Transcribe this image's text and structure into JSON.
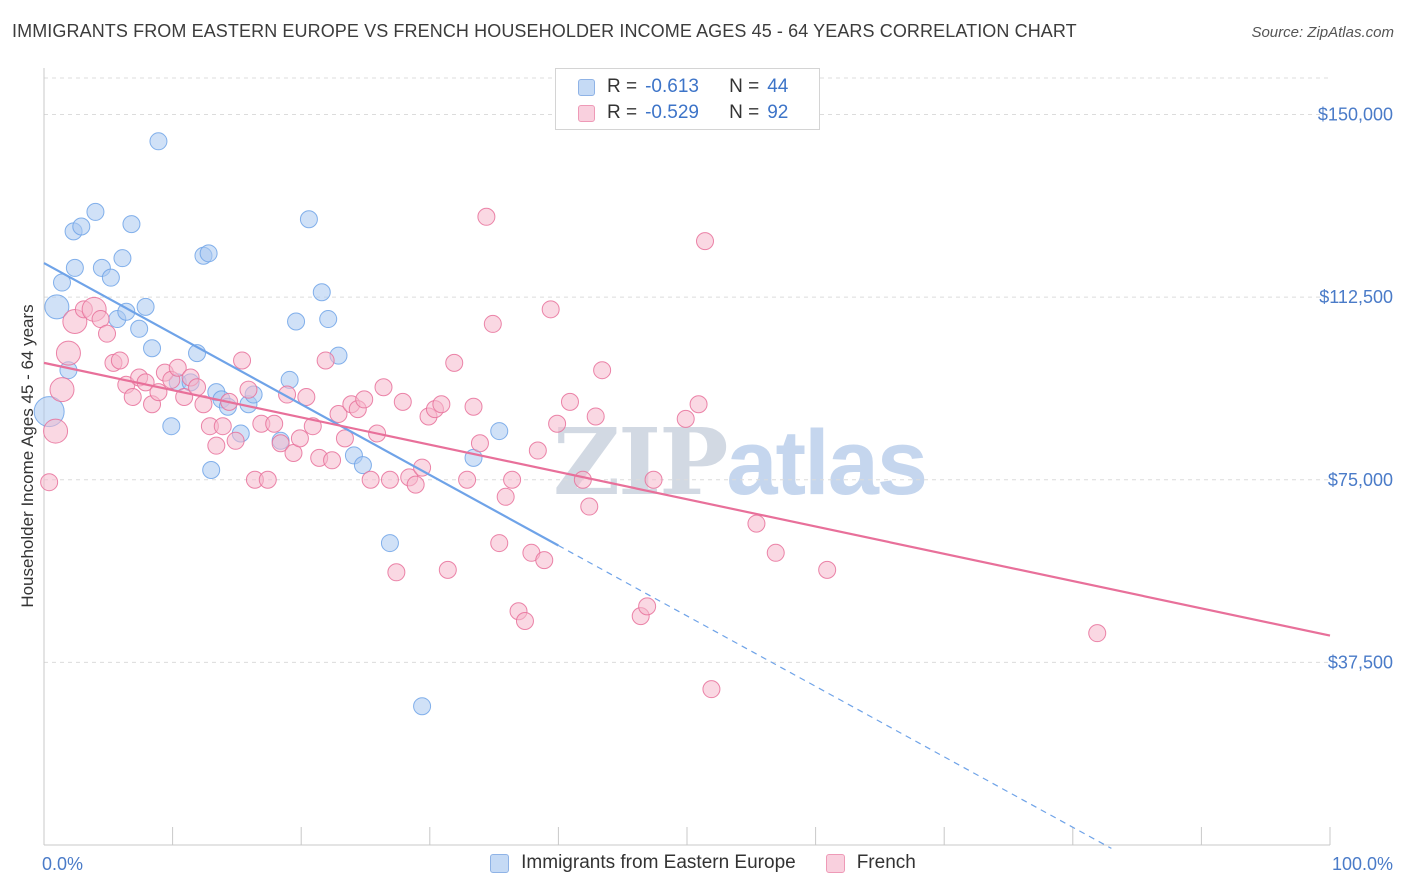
{
  "title": "IMMIGRANTS FROM EASTERN EUROPE VS FRENCH HOUSEHOLDER INCOME AGES 45 - 64 YEARS CORRELATION CHART",
  "source": "Source: ZipAtlas.com",
  "watermark": {
    "zip": "ZIP",
    "atlas": "atlas"
  },
  "legend": {
    "rows": [
      {
        "r_label": "R =",
        "r_value": "-0.613",
        "n_label": "N =",
        "n_value": "44",
        "color": "#a9c8f0"
      },
      {
        "r_label": "R =",
        "r_value": "-0.529",
        "n_label": "N =",
        "n_value": "92",
        "color": "#f5b8cc"
      }
    ]
  },
  "bottom_legend": [
    "Immigrants from Eastern Europe",
    "French"
  ],
  "chart_data": {
    "type": "scatter",
    "title": "IMMIGRANTS FROM EASTERN EUROPE VS FRENCH HOUSEHOLDER INCOME AGES 45 - 64 YEARS CORRELATION CHART",
    "xlabel": "",
    "ylabel": "Householder Income Ages 45 - 64 years",
    "xlim": [
      0,
      100
    ],
    "ylim": [
      0,
      157500
    ],
    "x_tick_labels": [
      "0.0%",
      "100.0%"
    ],
    "y_ticks": [
      37500,
      75000,
      112500,
      150000
    ],
    "y_tick_labels": [
      "$37,500",
      "$75,000",
      "$112,500",
      "$150,000"
    ],
    "grid": true,
    "legend_position": "top-center",
    "series": [
      {
        "name": "Immigrants from Eastern Europe",
        "color": "#6fa3e8",
        "fill": "#a9c8f0",
        "trend": {
          "x": [
            0,
            40
          ],
          "y": [
            119500,
            61500
          ]
        },
        "trend_extension": {
          "x": [
            40,
            83
          ],
          "y": [
            61500,
            -700
          ]
        },
        "points": [
          {
            "x": 0.4,
            "y": 89000,
            "size": 3
          },
          {
            "x": 1.0,
            "y": 110500,
            "size": 2
          },
          {
            "x": 1.4,
            "y": 115500,
            "size": 1
          },
          {
            "x": 1.9,
            "y": 97500,
            "size": 1
          },
          {
            "x": 2.3,
            "y": 126000,
            "size": 1
          },
          {
            "x": 2.4,
            "y": 118500,
            "size": 1
          },
          {
            "x": 2.9,
            "y": 127000,
            "size": 1
          },
          {
            "x": 4.0,
            "y": 130000,
            "size": 1
          },
          {
            "x": 4.5,
            "y": 118500,
            "size": 1
          },
          {
            "x": 5.2,
            "y": 116500,
            "size": 1
          },
          {
            "x": 5.7,
            "y": 108000,
            "size": 1
          },
          {
            "x": 6.1,
            "y": 120500,
            "size": 1
          },
          {
            "x": 6.4,
            "y": 109500,
            "size": 1
          },
          {
            "x": 6.8,
            "y": 127500,
            "size": 1
          },
          {
            "x": 7.4,
            "y": 106000,
            "size": 1
          },
          {
            "x": 7.9,
            "y": 110500,
            "size": 1
          },
          {
            "x": 8.4,
            "y": 102000,
            "size": 1
          },
          {
            "x": 8.9,
            "y": 144500,
            "size": 1
          },
          {
            "x": 9.9,
            "y": 86000,
            "size": 1
          },
          {
            "x": 10.4,
            "y": 95000,
            "size": 1
          },
          {
            "x": 11.4,
            "y": 95000,
            "size": 1
          },
          {
            "x": 11.9,
            "y": 101000,
            "size": 1
          },
          {
            "x": 12.4,
            "y": 121000,
            "size": 1
          },
          {
            "x": 12.8,
            "y": 121500,
            "size": 1
          },
          {
            "x": 13.0,
            "y": 77000,
            "size": 1
          },
          {
            "x": 13.4,
            "y": 93000,
            "size": 1
          },
          {
            "x": 13.8,
            "y": 91500,
            "size": 1
          },
          {
            "x": 14.3,
            "y": 90000,
            "size": 1
          },
          {
            "x": 15.3,
            "y": 84500,
            "size": 1
          },
          {
            "x": 15.9,
            "y": 90500,
            "size": 1
          },
          {
            "x": 16.3,
            "y": 92500,
            "size": 1
          },
          {
            "x": 18.4,
            "y": 83000,
            "size": 1
          },
          {
            "x": 19.1,
            "y": 95500,
            "size": 1
          },
          {
            "x": 19.6,
            "y": 107500,
            "size": 1
          },
          {
            "x": 20.6,
            "y": 128500,
            "size": 1
          },
          {
            "x": 21.6,
            "y": 113500,
            "size": 1
          },
          {
            "x": 22.1,
            "y": 108000,
            "size": 1
          },
          {
            "x": 22.9,
            "y": 100500,
            "size": 1
          },
          {
            "x": 24.1,
            "y": 80000,
            "size": 1
          },
          {
            "x": 24.8,
            "y": 78000,
            "size": 1
          },
          {
            "x": 26.9,
            "y": 62000,
            "size": 1
          },
          {
            "x": 29.4,
            "y": 28500,
            "size": 1
          },
          {
            "x": 33.4,
            "y": 79500,
            "size": 1
          },
          {
            "x": 35.4,
            "y": 85000,
            "size": 1
          }
        ]
      },
      {
        "name": "French",
        "color": "#e8709a",
        "fill": "#f5b8cc",
        "trend": {
          "x": [
            0,
            100
          ],
          "y": [
            99000,
            43000
          ]
        },
        "points": [
          {
            "x": 0.4,
            "y": 74500,
            "size": 1
          },
          {
            "x": 0.9,
            "y": 85000,
            "size": 2
          },
          {
            "x": 1.4,
            "y": 93500,
            "size": 2
          },
          {
            "x": 1.9,
            "y": 101000,
            "size": 2
          },
          {
            "x": 2.4,
            "y": 107500,
            "size": 2
          },
          {
            "x": 3.1,
            "y": 110000,
            "size": 1
          },
          {
            "x": 3.9,
            "y": 110000,
            "size": 2
          },
          {
            "x": 4.4,
            "y": 108000,
            "size": 1
          },
          {
            "x": 4.9,
            "y": 105000,
            "size": 1
          },
          {
            "x": 5.4,
            "y": 99000,
            "size": 1
          },
          {
            "x": 5.9,
            "y": 99500,
            "size": 1
          },
          {
            "x": 6.4,
            "y": 94500,
            "size": 1
          },
          {
            "x": 6.9,
            "y": 92000,
            "size": 1
          },
          {
            "x": 7.4,
            "y": 96000,
            "size": 1
          },
          {
            "x": 7.9,
            "y": 95000,
            "size": 1
          },
          {
            "x": 8.4,
            "y": 90500,
            "size": 1
          },
          {
            "x": 8.9,
            "y": 93000,
            "size": 1
          },
          {
            "x": 9.4,
            "y": 97000,
            "size": 1
          },
          {
            "x": 9.9,
            "y": 95500,
            "size": 1
          },
          {
            "x": 10.4,
            "y": 98000,
            "size": 1
          },
          {
            "x": 10.9,
            "y": 92000,
            "size": 1
          },
          {
            "x": 11.4,
            "y": 96000,
            "size": 1
          },
          {
            "x": 11.9,
            "y": 94000,
            "size": 1
          },
          {
            "x": 12.4,
            "y": 90500,
            "size": 1
          },
          {
            "x": 12.9,
            "y": 86000,
            "size": 1
          },
          {
            "x": 13.4,
            "y": 82000,
            "size": 1
          },
          {
            "x": 13.9,
            "y": 86000,
            "size": 1
          },
          {
            "x": 14.4,
            "y": 91000,
            "size": 1
          },
          {
            "x": 14.9,
            "y": 83000,
            "size": 1
          },
          {
            "x": 15.4,
            "y": 99500,
            "size": 1
          },
          {
            "x": 15.9,
            "y": 93500,
            "size": 1
          },
          {
            "x": 16.4,
            "y": 75000,
            "size": 1
          },
          {
            "x": 16.9,
            "y": 86500,
            "size": 1
          },
          {
            "x": 17.4,
            "y": 75000,
            "size": 1
          },
          {
            "x": 17.9,
            "y": 86500,
            "size": 1
          },
          {
            "x": 18.4,
            "y": 82500,
            "size": 1
          },
          {
            "x": 18.9,
            "y": 92500,
            "size": 1
          },
          {
            "x": 19.4,
            "y": 80500,
            "size": 1
          },
          {
            "x": 19.9,
            "y": 83500,
            "size": 1
          },
          {
            "x": 20.4,
            "y": 92000,
            "size": 1
          },
          {
            "x": 20.9,
            "y": 86000,
            "size": 1
          },
          {
            "x": 21.4,
            "y": 79500,
            "size": 1
          },
          {
            "x": 21.9,
            "y": 99500,
            "size": 1
          },
          {
            "x": 22.4,
            "y": 79000,
            "size": 1
          },
          {
            "x": 22.9,
            "y": 88500,
            "size": 1
          },
          {
            "x": 23.4,
            "y": 83500,
            "size": 1
          },
          {
            "x": 23.9,
            "y": 90500,
            "size": 1
          },
          {
            "x": 24.4,
            "y": 89500,
            "size": 1
          },
          {
            "x": 24.9,
            "y": 91500,
            "size": 1
          },
          {
            "x": 25.4,
            "y": 75000,
            "size": 1
          },
          {
            "x": 25.9,
            "y": 84500,
            "size": 1
          },
          {
            "x": 26.4,
            "y": 94000,
            "size": 1
          },
          {
            "x": 26.9,
            "y": 75000,
            "size": 1
          },
          {
            "x": 27.4,
            "y": 56000,
            "size": 1
          },
          {
            "x": 27.9,
            "y": 91000,
            "size": 1
          },
          {
            "x": 28.4,
            "y": 75500,
            "size": 1
          },
          {
            "x": 28.9,
            "y": 74000,
            "size": 1
          },
          {
            "x": 29.4,
            "y": 77500,
            "size": 1
          },
          {
            "x": 29.9,
            "y": 88000,
            "size": 1
          },
          {
            "x": 30.4,
            "y": 89500,
            "size": 1
          },
          {
            "x": 30.9,
            "y": 90500,
            "size": 1
          },
          {
            "x": 31.4,
            "y": 56500,
            "size": 1
          },
          {
            "x": 31.9,
            "y": 99000,
            "size": 1
          },
          {
            "x": 32.9,
            "y": 75000,
            "size": 1
          },
          {
            "x": 33.4,
            "y": 90000,
            "size": 1
          },
          {
            "x": 33.9,
            "y": 82500,
            "size": 1
          },
          {
            "x": 34.4,
            "y": 129000,
            "size": 1
          },
          {
            "x": 34.9,
            "y": 107000,
            "size": 1
          },
          {
            "x": 35.4,
            "y": 62000,
            "size": 1
          },
          {
            "x": 35.9,
            "y": 71500,
            "size": 1
          },
          {
            "x": 36.4,
            "y": 75000,
            "size": 1
          },
          {
            "x": 36.9,
            "y": 48000,
            "size": 1
          },
          {
            "x": 37.4,
            "y": 46000,
            "size": 1
          },
          {
            "x": 37.9,
            "y": 60000,
            "size": 1
          },
          {
            "x": 38.4,
            "y": 81000,
            "size": 1
          },
          {
            "x": 38.9,
            "y": 58500,
            "size": 1
          },
          {
            "x": 39.4,
            "y": 110000,
            "size": 1
          },
          {
            "x": 39.9,
            "y": 86500,
            "size": 1
          },
          {
            "x": 40.9,
            "y": 91000,
            "size": 1
          },
          {
            "x": 41.9,
            "y": 75000,
            "size": 1
          },
          {
            "x": 42.4,
            "y": 69500,
            "size": 1
          },
          {
            "x": 42.9,
            "y": 88000,
            "size": 1
          },
          {
            "x": 43.4,
            "y": 97500,
            "size": 1
          },
          {
            "x": 46.4,
            "y": 47000,
            "size": 1
          },
          {
            "x": 46.9,
            "y": 49000,
            "size": 1
          },
          {
            "x": 47.4,
            "y": 75000,
            "size": 1
          },
          {
            "x": 49.9,
            "y": 87500,
            "size": 1
          },
          {
            "x": 50.9,
            "y": 90500,
            "size": 1
          },
          {
            "x": 51.4,
            "y": 124000,
            "size": 1
          },
          {
            "x": 51.9,
            "y": 32000,
            "size": 1
          },
          {
            "x": 55.4,
            "y": 66000,
            "size": 1
          },
          {
            "x": 56.9,
            "y": 60000,
            "size": 1
          },
          {
            "x": 60.9,
            "y": 56500,
            "size": 1
          },
          {
            "x": 81.9,
            "y": 43500,
            "size": 1
          }
        ]
      }
    ]
  }
}
